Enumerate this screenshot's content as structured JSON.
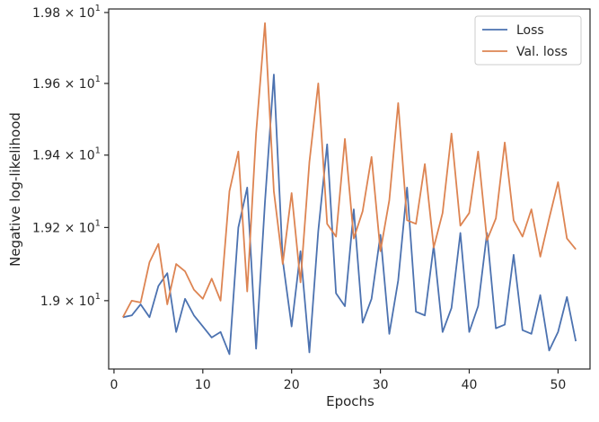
{
  "chart_data": {
    "type": "line",
    "title": "",
    "xlabel": "Epochs",
    "ylabel": "Negative log-likelihood",
    "x": [
      1,
      2,
      3,
      4,
      5,
      6,
      7,
      8,
      9,
      10,
      11,
      12,
      13,
      14,
      15,
      16,
      17,
      18,
      19,
      20,
      21,
      22,
      23,
      24,
      25,
      26,
      27,
      28,
      29,
      30,
      31,
      32,
      33,
      34,
      35,
      36,
      37,
      38,
      39,
      40,
      41,
      42,
      43,
      44,
      45,
      46,
      47,
      48,
      49,
      50,
      51,
      52
    ],
    "series": [
      {
        "name": "Loss",
        "color": "#4c72b0",
        "values": [
          18.955,
          18.96,
          18.99,
          18.955,
          19.04,
          19.075,
          18.915,
          19.005,
          18.96,
          18.93,
          18.9,
          18.915,
          18.855,
          19.2,
          19.31,
          18.87,
          19.27,
          19.625,
          19.11,
          18.93,
          19.135,
          18.86,
          19.19,
          19.43,
          19.02,
          18.985,
          19.25,
          18.94,
          19.005,
          19.18,
          18.91,
          19.055,
          19.31,
          18.97,
          18.96,
          19.15,
          18.915,
          18.98,
          19.185,
          18.915,
          18.985,
          19.185,
          18.925,
          18.935,
          19.125,
          18.92,
          18.91,
          19.015,
          18.865,
          18.915,
          19.01,
          18.89
        ]
      },
      {
        "name": "Val. loss",
        "color": "#dd8452",
        "values": [
          18.955,
          19.0,
          18.995,
          19.105,
          19.155,
          18.99,
          19.1,
          19.08,
          19.03,
          19.005,
          19.06,
          19.0,
          19.3,
          19.41,
          19.025,
          19.46,
          19.77,
          19.3,
          19.1,
          19.295,
          19.05,
          19.38,
          19.6,
          19.21,
          19.175,
          19.445,
          19.17,
          19.245,
          19.395,
          19.135,
          19.275,
          19.545,
          19.22,
          19.21,
          19.375,
          19.145,
          19.24,
          19.46,
          19.205,
          19.24,
          19.41,
          19.165,
          19.225,
          19.435,
          19.22,
          19.175,
          19.25,
          19.12,
          19.225,
          19.325,
          19.17,
          19.14
        ]
      }
    ],
    "xlim": [
      -0.6,
      53.6
    ],
    "ylim": [
      18.815,
      19.81
    ],
    "yscale": "log",
    "xticks": [
      0,
      10,
      20,
      30,
      40,
      50
    ],
    "xtick_labels": [
      "0",
      "10",
      "20",
      "30",
      "40",
      "50"
    ],
    "yticks": [
      {
        "value": 19.0,
        "mantissa": "1.9",
        "exp": "1"
      },
      {
        "value": 19.2,
        "mantissa": "1.92",
        "exp": "1"
      },
      {
        "value": 19.4,
        "mantissa": "1.94",
        "exp": "1"
      },
      {
        "value": 19.6,
        "mantissa": "1.96",
        "exp": "1"
      },
      {
        "value": 19.8,
        "mantissa": "1.98",
        "exp": "1"
      }
    ],
    "ytick_multiplier": "× 10",
    "grid": false,
    "legend_position": "top-right"
  }
}
